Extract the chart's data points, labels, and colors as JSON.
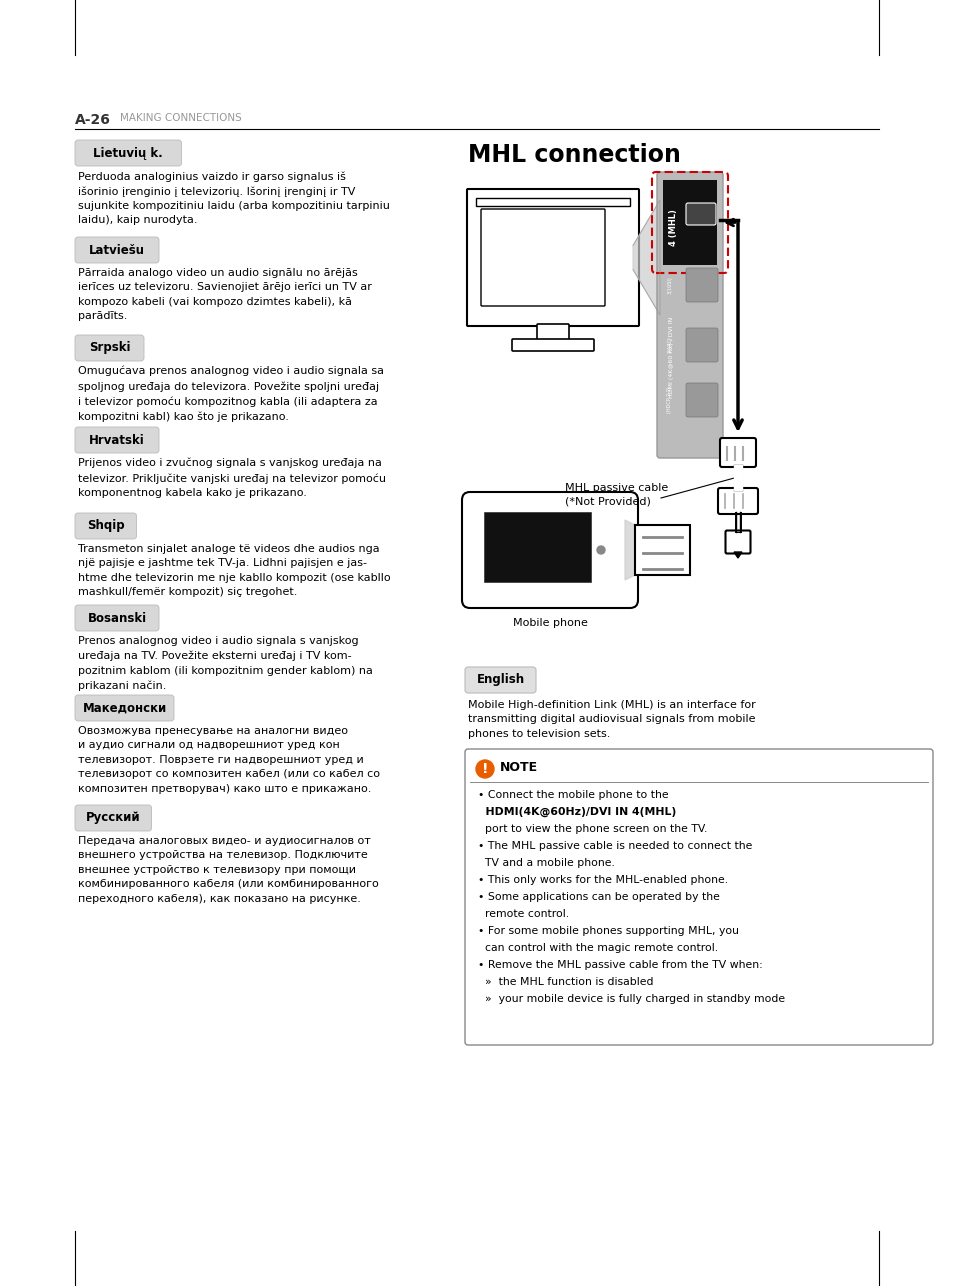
{
  "bg_color": "#ffffff",
  "page_header_bold": "A-26",
  "page_header_light": "MAKING CONNECTIONS",
  "title": "MHL connection",
  "sections": [
    {
      "lang": "Lietuvių k.",
      "text": "Perduoda analoginius vaizdo ir garso signalus iš\nišorinio įrenginio į televizorių. Išorinį įrenginį ir TV\nsujunkite kompozitiniu laidu (arba kompozitiniu tarpiniu\nlaidu), kaip nurodyta."
    },
    {
      "lang": "Latviešu",
      "text": "Pārraida analogo video un audio signālu no ārējās\nierīces uz televizoru. Savienojiet ārējo ierīci un TV ar\nkompozo kabeli (vai kompozo dzimtes kabeli), kā\nparādīts."
    },
    {
      "lang": "Srpski",
      "text": "Omugućava prenos analognog video i audio signala sa\nspoljnog uređaja do televizora. Povežite spoljni uređaj\ni televizor pomoću kompozitnog kabla (ili adaptera za\nkompozitni kabl) kao što je prikazano."
    },
    {
      "lang": "Hrvatski",
      "text": "Prijenos video i zvučnog signala s vanjskog uređaja na\ntelevizor. Priključite vanjski uređaj na televizor pomoću\nkomponentnog kabela kako je prikazano."
    },
    {
      "lang": "Shqip",
      "text": "Transmeton sinjalet analoge të videos dhe audios nga\nnjë pajisje e jashtme tek TV-ja. Lidhni pajisjen e jas-\nhtme dhe televizorin me nje kabllo kompozit (ose kabllo\nmashkull/femër kompozit) siç tregohet."
    },
    {
      "lang": "Bosanski",
      "text": "Prenos analognog video i audio signala s vanjskog\nuređaja na TV. Povežite eksterni uređaj i TV kom-\npozitnim kablom (ili kompozitnim gender kablom) na\nprikazani način."
    },
    {
      "lang": "Македонски",
      "text": "Овозможува пренесување на аналогни видео\nи аудио сигнали од надворешниот уред кон\nтелевизорот. Поврзете ги надворешниот уред и\nтелевизорот со композитен кабел (или со кабел со\nкомпозитен претворувач) како што е прикажано."
    },
    {
      "lang": "Русский",
      "text": "Передача аналоговых видео- и аудиосигналов от\nвнешнего устройства на телевизор. Подключите\nвнешнее устройство к телевизору при помощи\nкомбинированного кабеля (или комбинированного\nпереходного кабеля), как показано на рисунке."
    }
  ],
  "english_label": "English",
  "english_text": "Mobile High-definition Link (MHL) is an interface for\ntransmitting digital audiovisual signals from mobile\nphones to television sets.",
  "cable_label": "MHL passive cable\n(*Not Provided)",
  "mobile_label": "Mobile phone",
  "note_lines": [
    {
      "text": "• Connect the mobile phone to the",
      "bold": false
    },
    {
      "text": "  HDMI(4K@60Hz)/DVI IN 4(MHL)",
      "bold": true
    },
    {
      "text": "  port to view the phone screen on the TV.",
      "bold": false
    },
    {
      "text": "• The MHL passive cable is needed to connect the",
      "bold": false
    },
    {
      "text": "  TV and a mobile phone.",
      "bold": false
    },
    {
      "text": "• This only works for the MHL-enabled phone.",
      "bold": false
    },
    {
      "text": "• Some applications can be operated by the",
      "bold": false
    },
    {
      "text": "  remote control.",
      "bold": false
    },
    {
      "text": "• For some mobile phones supporting MHL, you",
      "bold": false
    },
    {
      "text": "  can control with the magic remote control.",
      "bold": false
    },
    {
      "text": "• Remove the MHL passive cable from the TV when:",
      "bold": false
    },
    {
      "text": "  »  the MHL function is disabled",
      "bold": false
    },
    {
      "text": "  »  your mobile device is fully charged in standby mode",
      "bold": false
    }
  ]
}
